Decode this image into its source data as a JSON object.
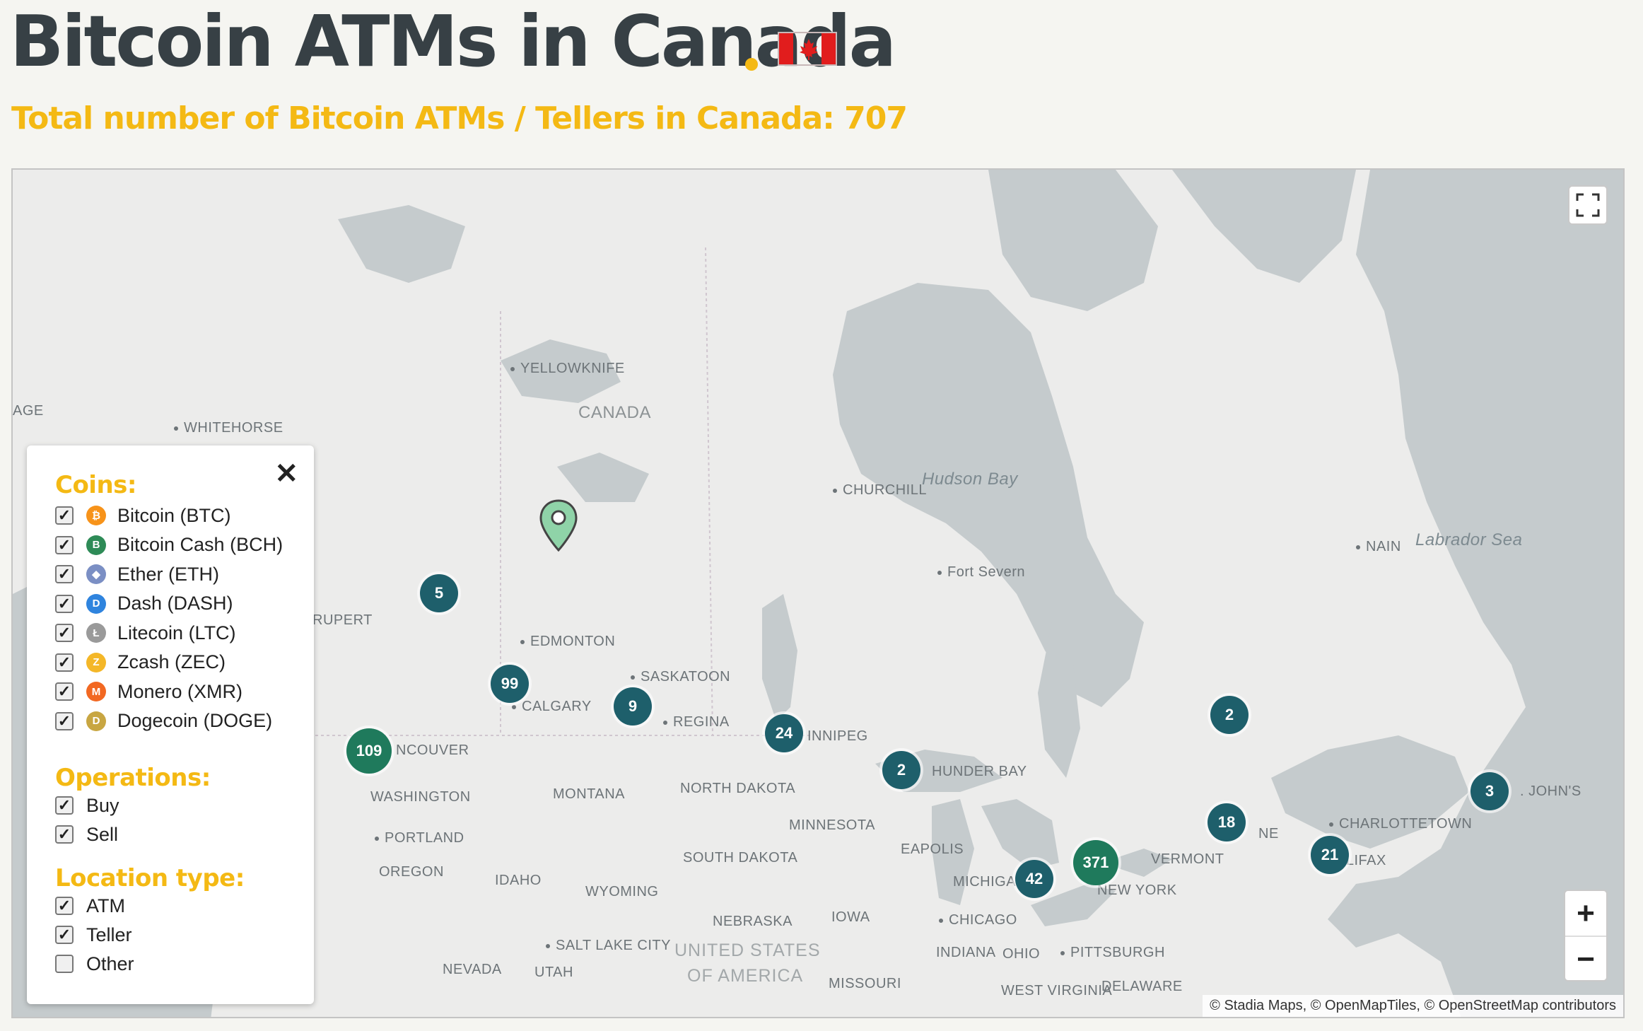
{
  "header": {
    "title": "Bitcoin ATMs in Canada",
    "subtitle": "Total number of Bitcoin ATMs / Tellers in Canada: 707",
    "accent_color": "#f4b914",
    "title_color": "#374045",
    "flag_red": "#e11d1d"
  },
  "map": {
    "places": [
      {
        "label": "YELLOWKNIFE",
        "dot": true
      },
      {
        "label": "CANADA",
        "dot": false
      },
      {
        "label": "AGE",
        "dot": false
      },
      {
        "label": "WHITEHORSE",
        "dot": true
      },
      {
        "label": "CHURCHILL",
        "dot": true
      },
      {
        "label": "Hudson Bay",
        "dot": false
      },
      {
        "label": "Fort Severn",
        "dot": true
      },
      {
        "label": "NAIN",
        "dot": true
      },
      {
        "label": "Labrador Sea",
        "dot": false
      },
      {
        "label": "RUPERT",
        "dot": false
      },
      {
        "label": "EDMONTON",
        "dot": true
      },
      {
        "label": "SASKATOON",
        "dot": true
      },
      {
        "label": "CALGARY",
        "dot": true
      },
      {
        "label": "REGINA",
        "dot": true
      },
      {
        "label": "INNIPEG",
        "dot": false
      },
      {
        "label": "NCOUVER",
        "dot": false
      },
      {
        "label": "HUNDER BAY",
        "dot": false
      },
      {
        "label": "WASHINGTON",
        "dot": false
      },
      {
        "label": "MONTANA",
        "dot": false
      },
      {
        "label": "NORTH DAKOTA",
        "dot": false
      },
      {
        "label": "MINNESOTA",
        "dot": false
      },
      {
        "label": "PORTLAND",
        "dot": true
      },
      {
        "label": "OREGON",
        "dot": false
      },
      {
        "label": "IDAHO",
        "dot": false
      },
      {
        "label": "SOUTH DAKOTA",
        "dot": false
      },
      {
        "label": "WYOMING",
        "dot": false
      },
      {
        "label": "EAPOLIS",
        "dot": false
      },
      {
        "label": "MICHIGAN",
        "dot": false
      },
      {
        "label": "VERMONT",
        "dot": false
      },
      {
        "label": "NEW YORK",
        "dot": false
      },
      {
        "label": "NE",
        "dot": false
      },
      {
        "label": "CHARLOTTETOWN",
        "dot": true
      },
      {
        "label": "ALIFAX",
        "dot": false
      },
      {
        "label": ". JOHN'S",
        "dot": false
      },
      {
        "label": "NEBRASKA",
        "dot": false
      },
      {
        "label": "IOWA",
        "dot": false
      },
      {
        "label": "CHICAGO",
        "dot": true
      },
      {
        "label": "SALT LAKE CITY",
        "dot": true
      },
      {
        "label": "UNITED STATES",
        "dot": false
      },
      {
        "label": "OF AMERICA",
        "dot": false
      },
      {
        "label": "INDIANA",
        "dot": false
      },
      {
        "label": "OHIO",
        "dot": false
      },
      {
        "label": "PITTSBURGH",
        "dot": true
      },
      {
        "label": "NEVADA",
        "dot": false
      },
      {
        "label": "UTAH",
        "dot": false
      },
      {
        "label": "MISSOURI",
        "dot": false
      },
      {
        "label": "WEST VIRGINIA",
        "dot": false
      },
      {
        "label": "DELAWARE",
        "dot": false
      }
    ],
    "clusters": [
      {
        "count": "5",
        "color": "#1e5f6b"
      },
      {
        "count": "99",
        "color": "#1e5f6b"
      },
      {
        "count": "9",
        "color": "#1e5f6b"
      },
      {
        "count": "24",
        "color": "#1e5f6b"
      },
      {
        "count": "109",
        "color": "#1f7a5c"
      },
      {
        "count": "2",
        "color": "#1e5f6b"
      },
      {
        "count": "2",
        "color": "#1e5f6b"
      },
      {
        "count": "18",
        "color": "#1e5f6b"
      },
      {
        "count": "3",
        "color": "#1e5f6b"
      },
      {
        "count": "21",
        "color": "#1e5f6b"
      },
      {
        "count": "371",
        "color": "#1f7a5c"
      },
      {
        "count": "42",
        "color": "#1e5f6b"
      }
    ],
    "zoom_in": "+",
    "zoom_out": "−",
    "attribution": "© Stadia Maps, © OpenMapTiles, © OpenStreetMap contributors",
    "water_color": "#c5cbcd",
    "land_color": "#ececeb",
    "marker_color": "#8fd3a8"
  },
  "filters": {
    "close": "✕",
    "coins_title": "Coins:",
    "coins": [
      {
        "label": "Bitcoin (BTC)",
        "symbol": "₿",
        "color": "#f7931a",
        "checked": true
      },
      {
        "label": "Bitcoin Cash (BCH)",
        "symbol": "B",
        "color": "#2e8b57",
        "checked": true
      },
      {
        "label": "Ether (ETH)",
        "symbol": "◆",
        "color": "#7b8fc4",
        "checked": true
      },
      {
        "label": "Dash (DASH)",
        "symbol": "D",
        "color": "#2f84de",
        "checked": true
      },
      {
        "label": "Litecoin (LTC)",
        "symbol": "Ł",
        "color": "#9a9a9a",
        "checked": true
      },
      {
        "label": "Zcash (ZEC)",
        "symbol": "Z",
        "color": "#f4b728",
        "checked": true
      },
      {
        "label": "Monero (XMR)",
        "symbol": "M",
        "color": "#f26822",
        "checked": true
      },
      {
        "label": "Dogecoin (DOGE)",
        "symbol": "D",
        "color": "#c8a642",
        "checked": true
      }
    ],
    "operations_title": "Operations:",
    "operations": [
      {
        "label": "Buy",
        "checked": true
      },
      {
        "label": "Sell",
        "checked": true
      }
    ],
    "location_title": "Location type:",
    "locations": [
      {
        "label": "ATM",
        "checked": true
      },
      {
        "label": "Teller",
        "checked": true
      },
      {
        "label": "Other",
        "checked": false
      }
    ]
  }
}
